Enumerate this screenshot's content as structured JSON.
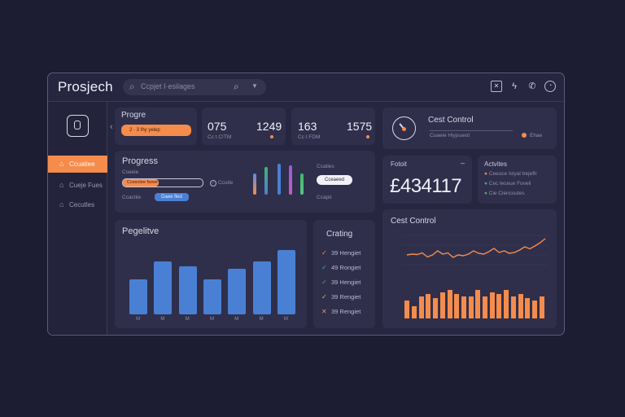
{
  "app": {
    "title": "Prosjech",
    "search_placeholder": "Ccpjet I·esilages"
  },
  "sidebar": {
    "items": [
      {
        "label": "Ccuatiee",
        "active": true
      },
      {
        "label": "Cueje Fues",
        "active": false
      },
      {
        "label": "Cecutles",
        "active": false
      }
    ]
  },
  "progress_card": {
    "title": "Progre",
    "pill": "2 · 3 Ihy yelep"
  },
  "stat_card_1": {
    "value_a": "075",
    "value_b": "1249",
    "sub": "Cc t  C!TM"
  },
  "stat_card_2": {
    "value_a": "163",
    "value_b": "1575",
    "sub": "Cc t FDM"
  },
  "progress_panel": {
    "title": "Progress",
    "sub": "Cseeie",
    "bar_label": "Ccesctee fsove",
    "bar_fill": 0.45,
    "side_label": "Ccuite",
    "small_label": "Ccactiie",
    "pill_blue": "Daee fled",
    "right_label_top": "Ccaties",
    "pill_white": "Cceaeed",
    "right_label_bottom": "Ccapit"
  },
  "cost_control_top": {
    "title": "Cest Control",
    "sub": "Cuaeie Hiyjsueot",
    "right_label": "Ehae"
  },
  "total_card": {
    "title": "Fotoit",
    "value": "£434117"
  },
  "activities_card": {
    "title": "Actvites",
    "rows": [
      "Ceeuce Iclyal trejefit",
      "Cec leceue Foveli",
      "Cie Ciencsutes"
    ]
  },
  "bar_chart": {
    "title": "Pegelitve",
    "categories": [
      "M",
      "M",
      "M",
      "M",
      "M",
      "M",
      "M"
    ],
    "tick_labels": [
      "M",
      "M",
      "M",
      "M",
      "M",
      "M",
      "M"
    ]
  },
  "chart_data": [
    {
      "type": "bar",
      "title": "Pegelitve",
      "categories": [
        "M",
        "M",
        "M",
        "M",
        "M",
        "M",
        "M"
      ],
      "values": [
        48,
        72,
        66,
        48,
        62,
        72,
        88
      ],
      "ylim": [
        0,
        100
      ]
    },
    {
      "type": "line",
      "title": "Cest Control",
      "values": [
        40,
        42,
        41,
        45,
        35,
        40,
        50,
        42,
        45,
        34,
        40,
        38,
        42,
        50,
        44,
        42,
        48,
        56,
        46,
        50,
        44,
        46,
        52,
        60,
        55,
        62,
        70,
        80
      ],
      "ylim": [
        0,
        100
      ]
    },
    {
      "type": "bar",
      "values": [
        45,
        30,
        55,
        60,
        50,
        65,
        70,
        60,
        55,
        55,
        70,
        55,
        65,
        60,
        70,
        55,
        60,
        50,
        45,
        55
      ],
      "ylim": [
        0,
        100
      ]
    }
  ],
  "cost_chart": {
    "title": "Cest Control"
  },
  "crating_card": {
    "title": "Crating",
    "rows": [
      {
        "label": "39 Hengiet",
        "status": "check",
        "color": "#f58c4c"
      },
      {
        "label": "49 Rongiet",
        "status": "check",
        "color": "#3fb56b"
      },
      {
        "label": "39 Hengiet",
        "status": "check",
        "color": "#3fb56b"
      },
      {
        "label": "39 Rengiet",
        "status": "check",
        "color": "#f5b64c"
      },
      {
        "label": "39 Rengiet",
        "status": "cross",
        "color": "#f58c4c"
      }
    ]
  },
  "colors": {
    "accent": "#f58c4c",
    "blue": "#4a80d4",
    "green": "#3fb56b"
  }
}
